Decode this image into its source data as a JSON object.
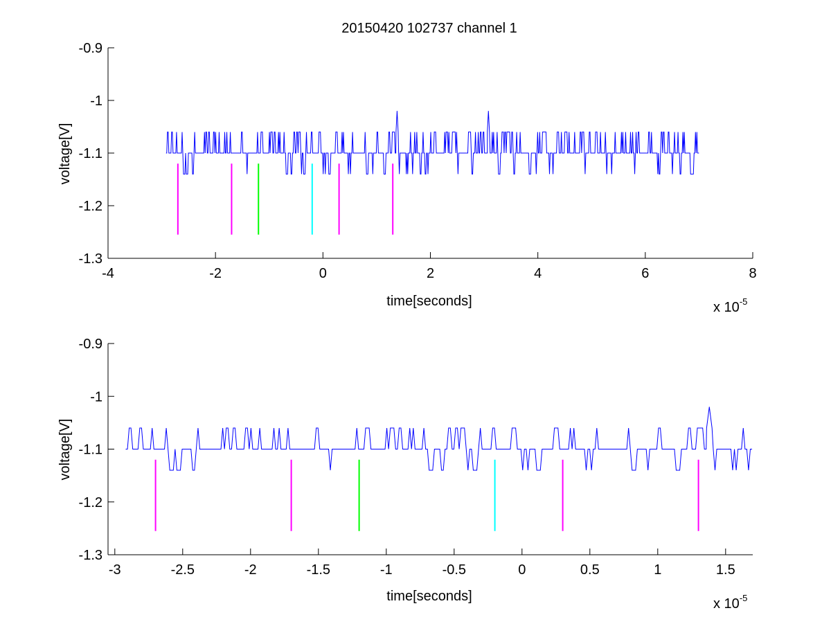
{
  "figure": {
    "title": "20150420 102737 channel 1",
    "colors": {
      "signal": "#0000ff",
      "magenta": "#ff00ff",
      "green": "#00ff00",
      "cyan": "#00ffff",
      "axis": "#000000"
    }
  },
  "chart_data": [
    {
      "type": "line",
      "title": "20150420 102737 channel 1",
      "xlabel": "time[seconds]",
      "ylabel": "voltage[V]",
      "x_multiplier_label": "x 10",
      "x_multiplier_exp": "-5",
      "xlim": [
        -4,
        8
      ],
      "ylim": [
        -1.3,
        -0.9
      ],
      "y_reversed": true,
      "xticks": [
        -4,
        -2,
        0,
        2,
        4,
        6,
        8
      ],
      "xtick_labels": [
        "-4",
        "-2",
        "0",
        "2",
        "4",
        "6",
        "8"
      ],
      "yticks": [
        -0.9,
        -1,
        -1.1,
        -1.2,
        -1.3
      ],
      "ytick_labels": [
        "-0.9",
        "-1",
        "-1.1",
        "-1.2",
        "-1.3"
      ],
      "grid": false,
      "signal": {
        "color": "#0000ff",
        "x_start": -2.92,
        "x_end": 7.0,
        "baseline": -1.1,
        "levels": [
          -1.06,
          -1.1,
          -1.14
        ],
        "spikes": [
          {
            "x": 1.38,
            "y": -1.02
          },
          {
            "x": 3.08,
            "y": -1.02
          }
        ]
      },
      "markers": [
        {
          "x": -2.7,
          "y0": -1.12,
          "y1": -1.255,
          "color": "#ff00ff"
        },
        {
          "x": -1.7,
          "y0": -1.12,
          "y1": -1.255,
          "color": "#ff00ff"
        },
        {
          "x": -1.2,
          "y0": -1.12,
          "y1": -1.255,
          "color": "#00ff00"
        },
        {
          "x": -0.2,
          "y0": -1.12,
          "y1": -1.255,
          "color": "#00ffff"
        },
        {
          "x": 0.3,
          "y0": -1.12,
          "y1": -1.255,
          "color": "#ff00ff"
        },
        {
          "x": 1.3,
          "y0": -1.12,
          "y1": -1.255,
          "color": "#ff00ff"
        }
      ]
    },
    {
      "type": "line",
      "title": "",
      "xlabel": "time[seconds]",
      "ylabel": "voltage[V]",
      "x_multiplier_label": "x 10",
      "x_multiplier_exp": "-5",
      "xlim": [
        -3.05,
        1.7
      ],
      "ylim": [
        -1.3,
        -0.9
      ],
      "y_reversed": true,
      "xticks": [
        -3,
        -2.5,
        -2,
        -1.5,
        -1,
        -0.5,
        0,
        0.5,
        1,
        1.5
      ],
      "xtick_labels": [
        "-3",
        "-2.5",
        "-2",
        "-1.5",
        "-1",
        "-0.5",
        "0",
        "0.5",
        "1",
        "1.5"
      ],
      "yticks": [
        -0.9,
        -1,
        -1.1,
        -1.2,
        -1.3
      ],
      "ytick_labels": [
        "-0.9",
        "-1",
        "-1.1",
        "-1.2",
        "-1.3"
      ],
      "grid": false,
      "signal": {
        "color": "#0000ff",
        "x_start": -2.92,
        "x_end": 1.7,
        "baseline": -1.1,
        "levels": [
          -1.06,
          -1.1,
          -1.14
        ],
        "spikes": [
          {
            "x": 1.38,
            "y": -1.02
          }
        ]
      },
      "markers": [
        {
          "x": -2.7,
          "y0": -1.12,
          "y1": -1.255,
          "color": "#ff00ff"
        },
        {
          "x": -1.7,
          "y0": -1.12,
          "y1": -1.255,
          "color": "#ff00ff"
        },
        {
          "x": -1.2,
          "y0": -1.12,
          "y1": -1.255,
          "color": "#00ff00"
        },
        {
          "x": -0.2,
          "y0": -1.12,
          "y1": -1.255,
          "color": "#00ffff"
        },
        {
          "x": 0.3,
          "y0": -1.12,
          "y1": -1.255,
          "color": "#ff00ff"
        },
        {
          "x": 1.3,
          "y0": -1.12,
          "y1": -1.255,
          "color": "#ff00ff"
        }
      ]
    }
  ]
}
